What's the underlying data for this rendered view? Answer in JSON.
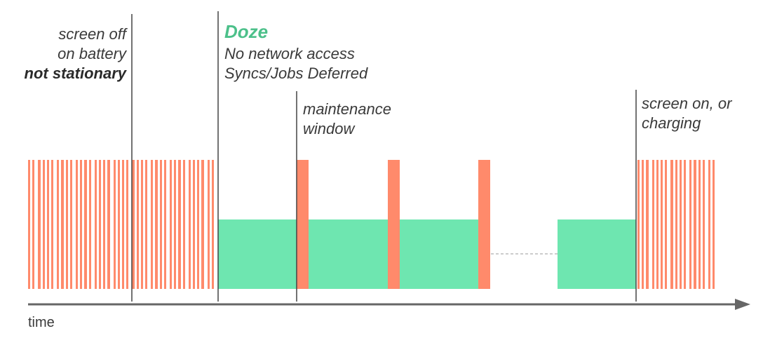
{
  "colors": {
    "active": "#ff8a6b",
    "doze": "#6ee6b0",
    "doze_title": "#4cc08a",
    "marker": "#444444",
    "axis": "#666666",
    "gap_line": "#999999"
  },
  "labels": {
    "screen_off": {
      "line1": "screen off",
      "line2": "on battery",
      "line3": "not stationary"
    },
    "doze": {
      "title": "Doze",
      "line1": "No network access",
      "line2": "Syncs/Jobs Deferred"
    },
    "maintenance": {
      "line1": "maintenance",
      "line2": "window"
    },
    "screen_on": {
      "line1": "screen on, or",
      "line2": "charging"
    },
    "axis": "time"
  }
}
